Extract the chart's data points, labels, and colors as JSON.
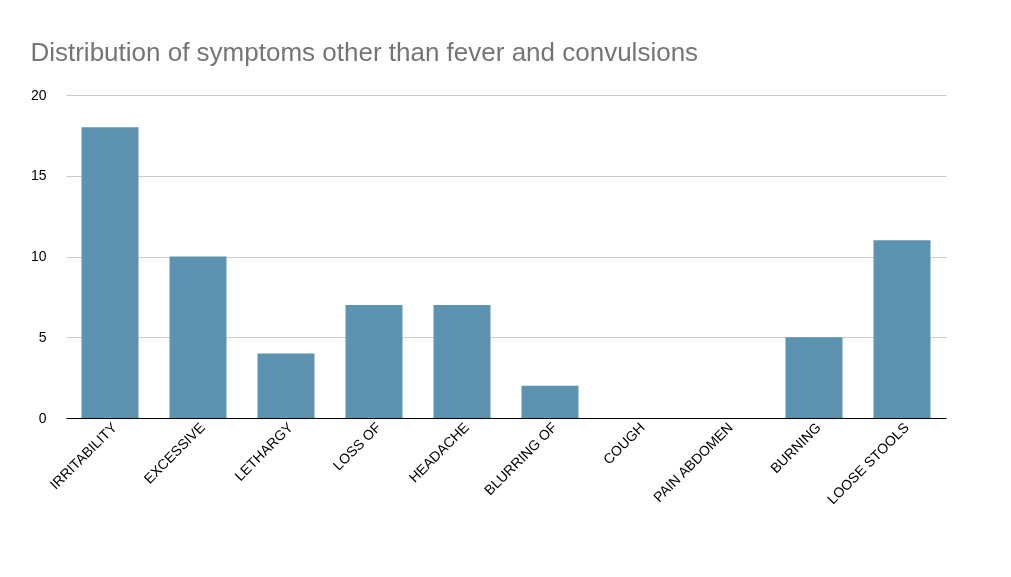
{
  "chart_data": {
    "type": "bar",
    "title": "Distribution of symptoms other than fever and convulsions",
    "categories": [
      "IRRITABILITY",
      "EXCESSIVE",
      "LETHARGY",
      "LOSS OF",
      "HEADACHE",
      "BLURRING OF",
      "COUGH",
      "PAIN ABDOMEN",
      "BURNING",
      "LOOSE STOOLS"
    ],
    "values": [
      18,
      10,
      4,
      7,
      7,
      2,
      0,
      0,
      5,
      11
    ],
    "color": "#5b93b0",
    "ylim": [
      0,
      20
    ],
    "yticks": [
      0,
      5,
      10,
      15,
      20
    ],
    "grid": "y"
  }
}
